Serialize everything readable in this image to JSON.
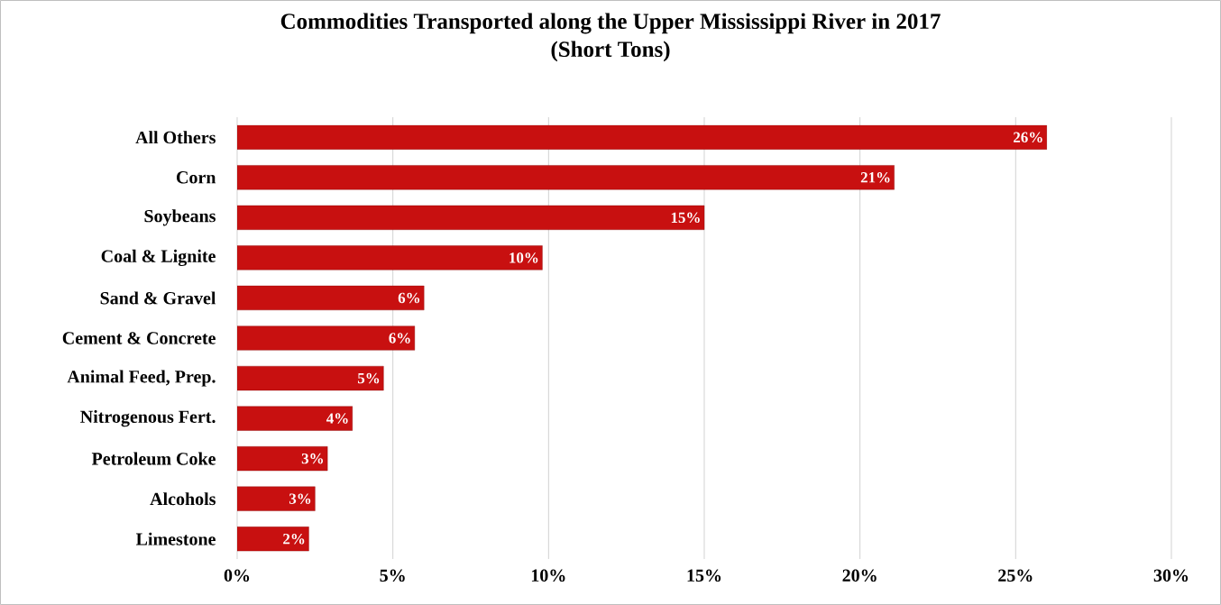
{
  "chart_data": {
    "type": "bar",
    "orientation": "horizontal",
    "title": "Commodities Transported along the Upper Mississippi River in 2017",
    "subtitle": "(Short Tons)",
    "categories": [
      "All Others",
      "Corn",
      "Soybeans",
      "Coal & Lignite",
      "Sand & Gravel",
      "Cement & Concrete",
      "Animal Feed, Prep.",
      "Nitrogenous Fert.",
      "Petroleum Coke",
      "Alcohols",
      "Limestone"
    ],
    "values": [
      26.0,
      21.1,
      15.0,
      9.8,
      6.0,
      5.7,
      4.7,
      3.7,
      2.9,
      2.5,
      2.3
    ],
    "value_labels": [
      "26%",
      "21%",
      "15%",
      "10%",
      "6%",
      "6%",
      "5%",
      "4%",
      "3%",
      "3%",
      "2%"
    ],
    "color": "#c81010",
    "xlim": [
      0,
      30
    ],
    "xticks": [
      {
        "value": 0,
        "label": "0%"
      },
      {
        "value": 5,
        "label": "5%"
      },
      {
        "value": 10,
        "label": "10%"
      },
      {
        "value": 15,
        "label": "15%"
      },
      {
        "value": 20,
        "label": "20%"
      },
      {
        "value": 25,
        "label": "25%"
      },
      {
        "value": 30,
        "label": "30%"
      }
    ],
    "grid": "x"
  }
}
